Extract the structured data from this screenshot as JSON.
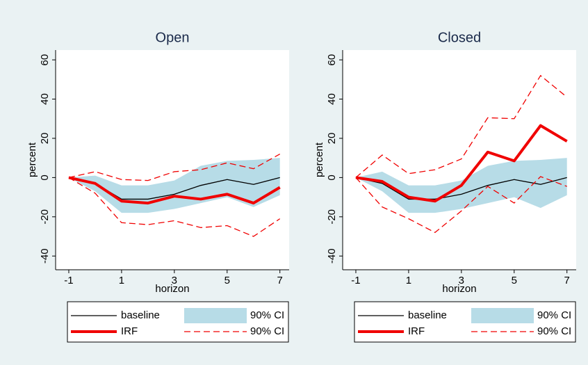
{
  "chart_data": [
    {
      "type": "line",
      "title": "Open",
      "xlabel": "horizon",
      "ylabel": "percent",
      "x": [
        -1,
        0,
        1,
        2,
        3,
        4,
        5,
        6,
        7
      ],
      "xlim": [
        -1.5,
        7.35
      ],
      "xticks": [
        -1,
        1,
        3,
        5,
        7
      ],
      "ylim": [
        -47,
        65
      ],
      "yticks": [
        -40,
        -20,
        0,
        20,
        40,
        60
      ],
      "series": [
        {
          "name": "baseline",
          "style": "solid",
          "color": "#000000",
          "values": [
            0,
            -3,
            -11,
            -11,
            -8.5,
            -4,
            -1,
            -3.5,
            0
          ]
        },
        {
          "name": "90% CI",
          "style": "band",
          "color": "#b7dce7",
          "upper": [
            0,
            1,
            -4,
            -4,
            -1.5,
            6,
            8.5,
            9,
            10
          ],
          "lower": [
            0,
            -7,
            -18,
            -18,
            -16,
            -13,
            -10,
            -15,
            -9
          ]
        },
        {
          "name": "IRF",
          "style": "thick",
          "color": "#f00000",
          "values": [
            0,
            -3,
            -12,
            -13,
            -9.5,
            -11,
            -8.5,
            -13,
            -5
          ]
        },
        {
          "name": "90% CI",
          "style": "dashed",
          "color": "#f00000",
          "upper": [
            0,
            3,
            -1,
            -1.5,
            3,
            4,
            7.5,
            4.5,
            12
          ],
          "lower": [
            0,
            -8,
            -23,
            -24,
            -22,
            -25.5,
            -24.5,
            -30,
            -21
          ]
        }
      ]
    },
    {
      "type": "line",
      "title": "Closed",
      "xlabel": "horizon",
      "ylabel": "percent",
      "x": [
        -1,
        0,
        1,
        2,
        3,
        4,
        5,
        6,
        7
      ],
      "xlim": [
        -1.5,
        7.35
      ],
      "xticks": [
        -1,
        1,
        3,
        5,
        7
      ],
      "ylim": [
        -47,
        65
      ],
      "yticks": [
        -40,
        -20,
        0,
        20,
        40,
        60
      ],
      "series": [
        {
          "name": "baseline",
          "style": "solid",
          "color": "#000000",
          "values": [
            0,
            -3,
            -11,
            -11,
            -8.5,
            -4,
            -1,
            -3.5,
            0
          ]
        },
        {
          "name": "90% CI",
          "style": "band",
          "color": "#b7dce7",
          "upper": [
            0,
            3,
            -4,
            -4,
            -1.5,
            6,
            8.5,
            9,
            10
          ],
          "lower": [
            0,
            -7,
            -18,
            -18,
            -16,
            -13,
            -10,
            -15.5,
            -9
          ]
        },
        {
          "name": "IRF",
          "style": "thick",
          "color": "#f00000",
          "values": [
            0,
            -2,
            -10,
            -12,
            -4,
            13,
            8.5,
            26.5,
            18.5
          ]
        },
        {
          "name": "90% CI",
          "style": "dashed",
          "color": "#f00000",
          "upper": [
            0,
            11.5,
            2,
            4,
            9.5,
            30.5,
            30,
            52,
            41
          ],
          "lower": [
            0,
            -15,
            -21,
            -28,
            -17,
            -4.5,
            -13,
            0.5,
            -4.5
          ]
        }
      ]
    }
  ]
}
